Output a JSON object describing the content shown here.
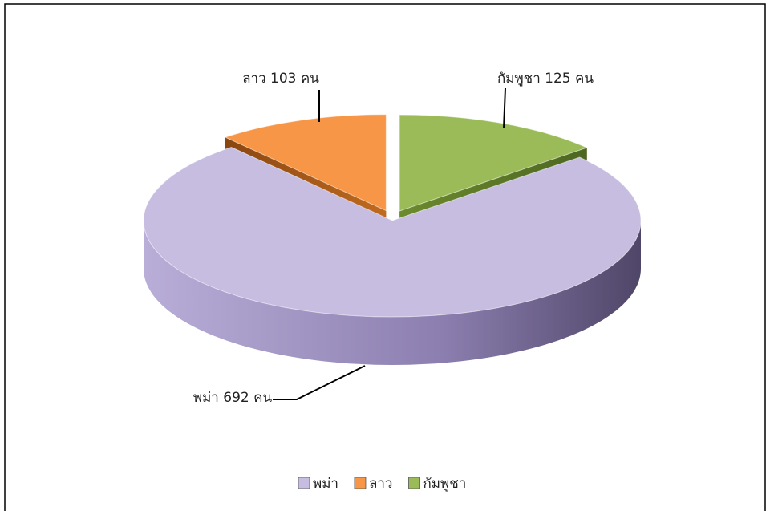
{
  "chart_data": {
    "type": "pie",
    "categories": [
      "พม่า",
      "ลาว",
      "กัมพูชา"
    ],
    "values": [
      692,
      103,
      125
    ],
    "value_labels": [
      "พม่า 692 คน",
      "ลาว 103 คน",
      "กัมพูชา 125 คน"
    ],
    "colors": [
      "#c6bde0",
      "#f79646",
      "#9bbb59"
    ],
    "legend": "bottom"
  }
}
